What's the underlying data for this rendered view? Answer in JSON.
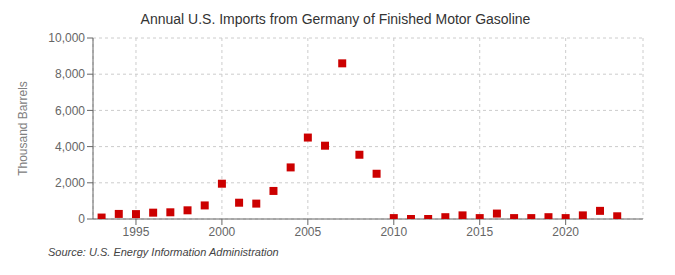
{
  "chart_data": {
    "type": "scatter",
    "title": "Annual U.S. Imports from Germany of Finished Motor Gasoline",
    "ylabel": "Thousand Barrels",
    "source": "Source: U.S. Energy Information Administration",
    "color": "#cc0000",
    "marker": "square",
    "grid": true,
    "x": [
      1993,
      1994,
      1995,
      1996,
      1997,
      1998,
      1999,
      2000,
      2001,
      2002,
      2003,
      2004,
      2005,
      2006,
      2007,
      2008,
      2009,
      2010,
      2011,
      2012,
      2013,
      2014,
      2015,
      2016,
      2017,
      2018,
      2019,
      2020,
      2021,
      2022,
      2023
    ],
    "values": [
      80,
      280,
      270,
      350,
      370,
      480,
      750,
      1950,
      900,
      850,
      1550,
      2850,
      4500,
      4050,
      8600,
      3550,
      2500,
      50,
      0,
      0,
      100,
      200,
      50,
      300,
      50,
      50,
      100,
      50,
      200,
      450,
      150
    ],
    "xlim": [
      1992.5,
      2024.5
    ],
    "xticks": [
      1995,
      2000,
      2005,
      2010,
      2015,
      2020
    ],
    "ylim": [
      0,
      10000
    ],
    "yticks": [
      0,
      {
        "value": 2000,
        "label": "2,000"
      },
      {
        "value": 4000,
        "label": "4,000"
      },
      {
        "value": 6000,
        "label": "6,000"
      },
      {
        "value": 8000,
        "label": "8,000"
      },
      {
        "value": 10000,
        "label": "10,000"
      }
    ]
  }
}
